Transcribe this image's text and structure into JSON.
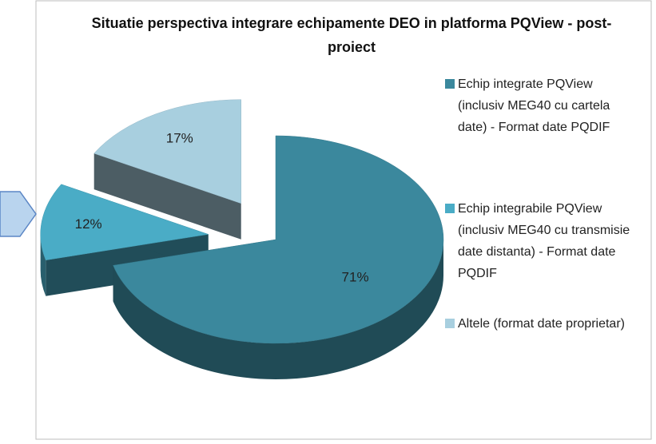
{
  "chart_data": {
    "type": "pie3d",
    "title": "Situatie perspectiva integrare echipamente DEO in platforma PQView  - post- proiect",
    "categories": [
      "Echip integrate PQView (inclusiv MEG40 cu cartela date) - Format date PQDIF",
      "Echip integrabile PQView (inclusiv MEG40 cu transmisie date distanta) - Format date PQDIF",
      "Altele (format date proprietar)"
    ],
    "values": [
      71,
      12,
      17
    ],
    "value_labels": [
      "71%",
      "12%",
      "17%"
    ],
    "colors": [
      "#3b889d",
      "#4aacc6",
      "#a8cfdf"
    ],
    "legend": "right"
  }
}
